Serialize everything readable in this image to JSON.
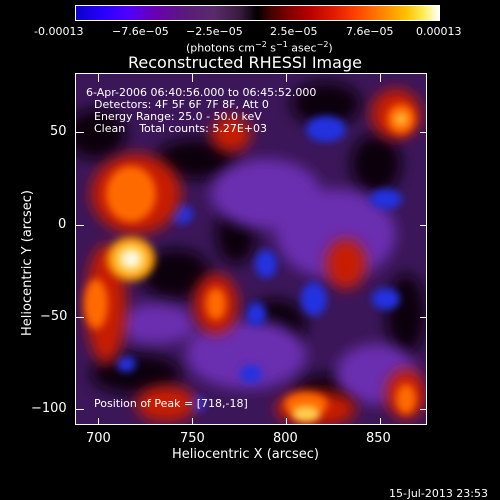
{
  "colorbar": {
    "tick_labels": [
      "-0.00013",
      "−7.6e−05",
      "−2.5e−05",
      "2.5e−05",
      "7.6e−05",
      "0.00013"
    ],
    "units_prefix": "(photons cm",
    "units_exp1": "−2",
    "units_mid": " s",
    "units_exp2": "−1",
    "units_mid2": " asec",
    "units_exp3": "−2",
    "units_suffix": ")"
  },
  "title": "Reconstructed RHESSI Image",
  "annotations": {
    "line1": "6-Apr-2006 06:40:56.000 to 06:45:52.000",
    "line2": "Detectors: 4F 5F 6F 7F 8F, Att 0",
    "line3": "Energy Range: 25.0 - 50.0 keV",
    "line4": "Clean    Total counts: 5.27E+03",
    "peak": "Position of Peak = [718,-18]"
  },
  "axes": {
    "xlabel": "Heliocentric X (arcsec)",
    "ylabel": "Heliocentric Y (arcsec)",
    "x_ticks": [
      "700",
      "750",
      "800",
      "850"
    ],
    "y_ticks": [
      "50",
      "0",
      "−50",
      "−100"
    ]
  },
  "footer_timestamp": "15-Jul-2013 23:53"
}
